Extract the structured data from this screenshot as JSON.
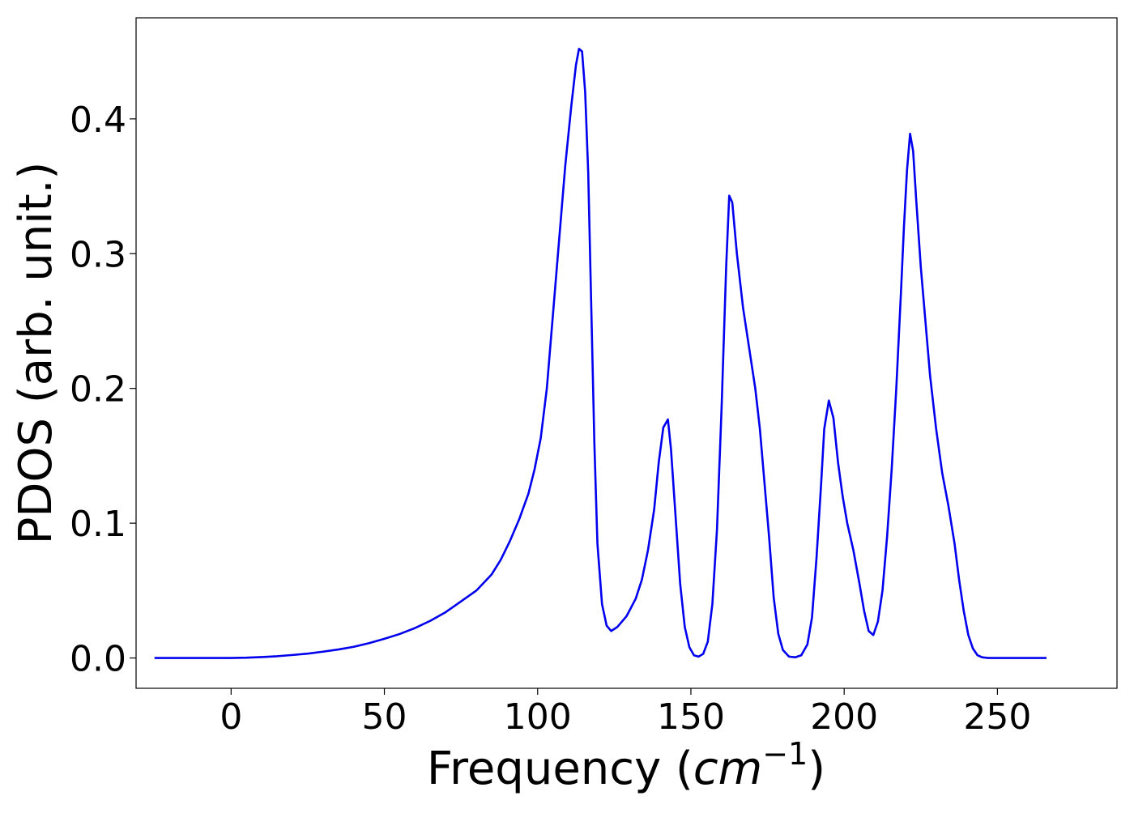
{
  "chart_data": {
    "type": "line",
    "title": "",
    "xlabel_prefix": "Frequency (",
    "xlabel_var": "cm",
    "xlabel_sup": "−1",
    "xlabel_suffix": ")",
    "ylabel": "PDOS (arb. unit.)",
    "xlim": [
      -31,
      289
    ],
    "ylim": [
      -0.0225,
      0.475
    ],
    "xticks": [
      0,
      50,
      100,
      150,
      200,
      250
    ],
    "xtick_labels": [
      "0",
      "50",
      "100",
      "150",
      "200",
      "250"
    ],
    "yticks": [
      0.0,
      0.1,
      0.2,
      0.3,
      0.4
    ],
    "ytick_labels": [
      "0.0",
      "0.1",
      "0.2",
      "0.3",
      "0.4"
    ],
    "grid": false,
    "legend": "none",
    "series": [
      {
        "color": "#0000ee",
        "points": [
          [
            -25,
            0.0
          ],
          [
            -10,
            0.0
          ],
          [
            0,
            0.0
          ],
          [
            5,
            0.0002
          ],
          [
            10,
            0.0007
          ],
          [
            15,
            0.0013
          ],
          [
            20,
            0.0022
          ],
          [
            25,
            0.0032
          ],
          [
            30,
            0.0047
          ],
          [
            35,
            0.0063
          ],
          [
            40,
            0.0083
          ],
          [
            45,
            0.011
          ],
          [
            50,
            0.0142
          ],
          [
            55,
            0.0178
          ],
          [
            60,
            0.0222
          ],
          [
            65,
            0.0276
          ],
          [
            70,
            0.034
          ],
          [
            75,
            0.042
          ],
          [
            80,
            0.05
          ],
          [
            85,
            0.062
          ],
          [
            88,
            0.073
          ],
          [
            91,
            0.087
          ],
          [
            94,
            0.103
          ],
          [
            97,
            0.122
          ],
          [
            99,
            0.14
          ],
          [
            101,
            0.163
          ],
          [
            103,
            0.2
          ],
          [
            105,
            0.255
          ],
          [
            107,
            0.31
          ],
          [
            109,
            0.365
          ],
          [
            111,
            0.41
          ],
          [
            112.5,
            0.44
          ],
          [
            113.5,
            0.452
          ],
          [
            114.5,
            0.45
          ],
          [
            115.5,
            0.42
          ],
          [
            116.5,
            0.36
          ],
          [
            117.5,
            0.26
          ],
          [
            118.5,
            0.16
          ],
          [
            119.5,
            0.085
          ],
          [
            121,
            0.04
          ],
          [
            122.5,
            0.024
          ],
          [
            124,
            0.02
          ],
          [
            126,
            0.023
          ],
          [
            129,
            0.031
          ],
          [
            132,
            0.044
          ],
          [
            134,
            0.058
          ],
          [
            136,
            0.08
          ],
          [
            138,
            0.11
          ],
          [
            139.5,
            0.145
          ],
          [
            141,
            0.171
          ],
          [
            142.5,
            0.177
          ],
          [
            143.5,
            0.155
          ],
          [
            145,
            0.105
          ],
          [
            146.5,
            0.055
          ],
          [
            148,
            0.023
          ],
          [
            149.5,
            0.008
          ],
          [
            151,
            0.002
          ],
          [
            152.5,
            0.001
          ],
          [
            154,
            0.003
          ],
          [
            155.5,
            0.012
          ],
          [
            157,
            0.04
          ],
          [
            158.5,
            0.095
          ],
          [
            160,
            0.185
          ],
          [
            161.5,
            0.29
          ],
          [
            162.5,
            0.343
          ],
          [
            163.5,
            0.338
          ],
          [
            165,
            0.3
          ],
          [
            167,
            0.26
          ],
          [
            169,
            0.23
          ],
          [
            171,
            0.2
          ],
          [
            172.5,
            0.17
          ],
          [
            174,
            0.13
          ],
          [
            175.5,
            0.09
          ],
          [
            177,
            0.045
          ],
          [
            178.5,
            0.018
          ],
          [
            180,
            0.006
          ],
          [
            182,
            0.001
          ],
          [
            184,
            0.0005
          ],
          [
            186,
            0.002
          ],
          [
            188,
            0.01
          ],
          [
            189.5,
            0.03
          ],
          [
            191,
            0.075
          ],
          [
            192.5,
            0.13
          ],
          [
            193.5,
            0.17
          ],
          [
            195,
            0.191
          ],
          [
            196.5,
            0.178
          ],
          [
            198,
            0.145
          ],
          [
            199.5,
            0.12
          ],
          [
            201,
            0.1
          ],
          [
            203,
            0.08
          ],
          [
            205,
            0.055
          ],
          [
            206.5,
            0.035
          ],
          [
            208,
            0.02
          ],
          [
            209.5,
            0.017
          ],
          [
            211,
            0.027
          ],
          [
            212.5,
            0.05
          ],
          [
            214,
            0.09
          ],
          [
            215.5,
            0.14
          ],
          [
            217,
            0.2
          ],
          [
            218.5,
            0.27
          ],
          [
            219.5,
            0.32
          ],
          [
            220.5,
            0.362
          ],
          [
            221.5,
            0.389
          ],
          [
            222.5,
            0.376
          ],
          [
            223.5,
            0.34
          ],
          [
            225,
            0.29
          ],
          [
            226.5,
            0.25
          ],
          [
            228,
            0.21
          ],
          [
            230,
            0.17
          ],
          [
            232,
            0.137
          ],
          [
            234,
            0.113
          ],
          [
            236,
            0.085
          ],
          [
            237.5,
            0.058
          ],
          [
            239,
            0.035
          ],
          [
            240.5,
            0.017
          ],
          [
            242,
            0.007
          ],
          [
            243.5,
            0.002
          ],
          [
            245,
            0.0005
          ],
          [
            247,
            0.0
          ],
          [
            255,
            0.0
          ],
          [
            266,
            0.0
          ]
        ]
      }
    ]
  }
}
